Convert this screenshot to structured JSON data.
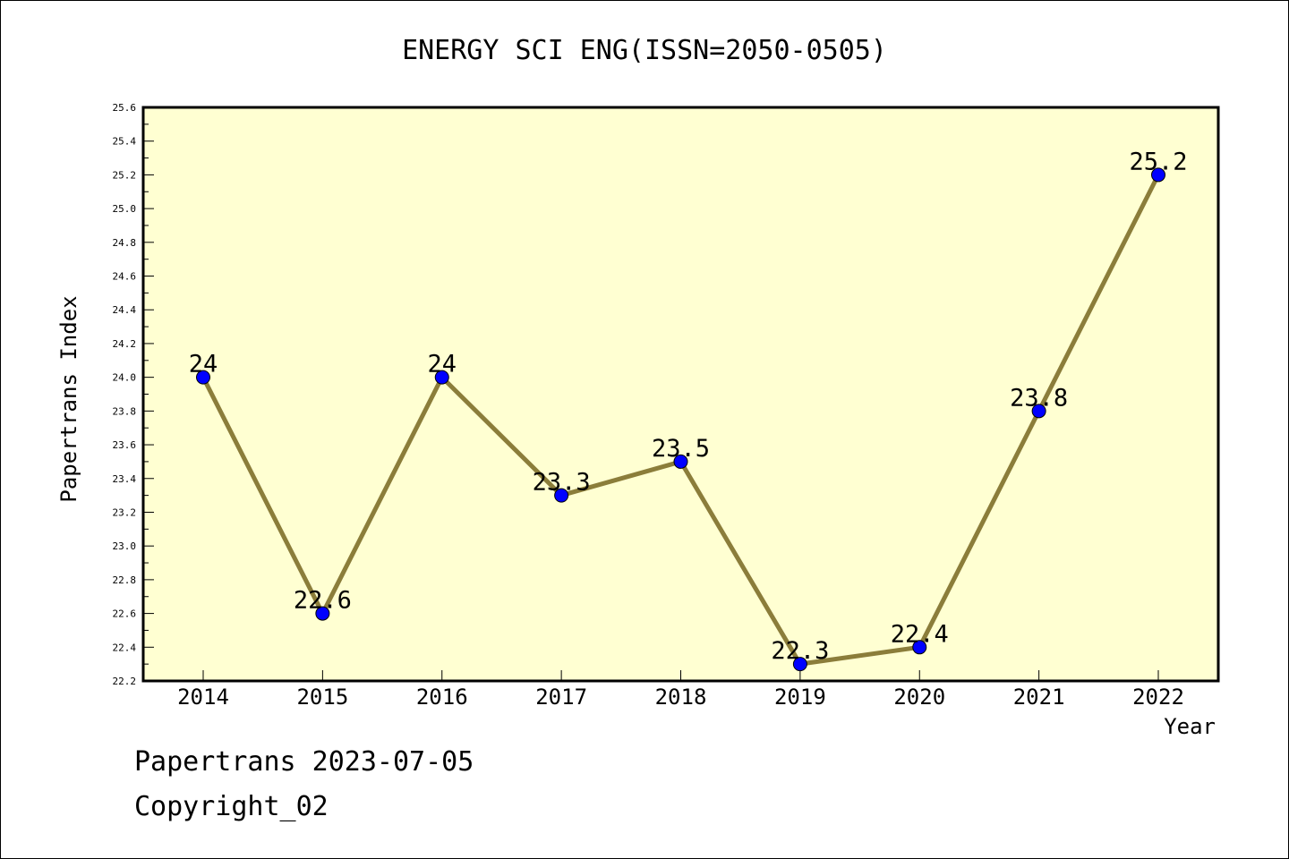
{
  "chart_data": {
    "type": "line",
    "title": "ENERGY SCI ENG(ISSN=2050-0505)",
    "xlabel": "Year",
    "ylabel": "Papertrans Index",
    "categories": [
      "2014",
      "2015",
      "2016",
      "2017",
      "2018",
      "2019",
      "2020",
      "2021",
      "2022"
    ],
    "series": [
      {
        "values": [
          24,
          22.6,
          24,
          23.3,
          23.5,
          22.3,
          22.4,
          23.8,
          25.2
        ],
        "labels": [
          "24",
          "22.6",
          "24",
          "23.3",
          "23.5",
          "22.3",
          "22.4",
          "23.8",
          "25.2"
        ]
      }
    ],
    "ylim": [
      22.2,
      25.6
    ],
    "yticks": [
      "22.2",
      "22.4",
      "22.6",
      "22.8",
      "23.0",
      "23.2",
      "23.4",
      "23.6",
      "23.8",
      "24.0",
      "24.2",
      "24.4",
      "24.6",
      "24.8",
      "25.0",
      "25.2",
      "25.4",
      "25.6"
    ],
    "grid": false,
    "colors": {
      "plot_background": "#ffffd2",
      "line": "#8b7d3a",
      "marker": "#0000ff"
    }
  },
  "footer": {
    "line1": "Papertrans 2023-07-05",
    "line2": "Copyright_02"
  }
}
